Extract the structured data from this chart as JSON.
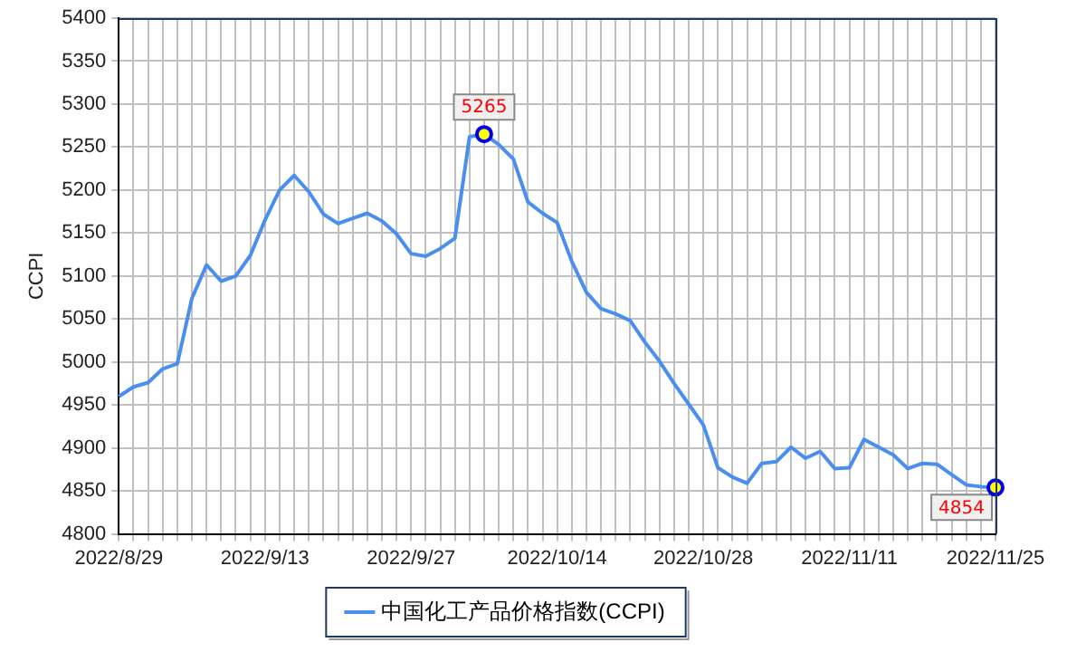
{
  "chart_data": {
    "type": "line",
    "ylabel": "CCPI",
    "categories": [
      "2022/8/29",
      null,
      null,
      null,
      null,
      null,
      null,
      null,
      null,
      null,
      "2022/9/13",
      null,
      null,
      null,
      null,
      null,
      null,
      null,
      null,
      null,
      "2022/9/27",
      null,
      null,
      null,
      null,
      null,
      null,
      null,
      null,
      null,
      "2022/10/14",
      null,
      null,
      null,
      null,
      null,
      null,
      null,
      null,
      null,
      "2022/10/28",
      null,
      null,
      null,
      null,
      null,
      null,
      null,
      null,
      null,
      "2022/11/11",
      null,
      null,
      null,
      null,
      null,
      null,
      null,
      null,
      null,
      "2022/11/25"
    ],
    "series": [
      {
        "name": "中国化工产品价格指数(CCPI)",
        "color": "#4a8ff0",
        "values": [
          4960,
          4971,
          4976,
          4992,
          4998,
          5074,
          5113,
          5094,
          5100,
          5124,
          5165,
          5200,
          5217,
          5198,
          5172,
          5161,
          5167,
          5173,
          5164,
          5149,
          5126,
          5123,
          5132,
          5144,
          5262,
          5265,
          5253,
          5236,
          5186,
          5173,
          5162,
          5117,
          5081,
          5062,
          5056,
          5048,
          5023,
          5001,
          4975,
          4951,
          4927,
          4877,
          4866,
          4859,
          4882,
          4884,
          4901,
          4888,
          4896,
          4876,
          4877,
          4910,
          4901,
          4892,
          4876,
          4882,
          4881,
          4869,
          4857,
          4855,
          4854
        ]
      }
    ],
    "ylim": [
      4800,
      5400
    ],
    "yticks": [
      4800,
      4850,
      4900,
      4950,
      5000,
      5050,
      5100,
      5150,
      5200,
      5250,
      5300,
      5350,
      5400
    ],
    "grid": true,
    "legend": "bottom",
    "marker": "none",
    "line_style": "solid",
    "annotations": [
      {
        "text": "5265",
        "y": 5265
      },
      {
        "text": "4854",
        "y": 4854
      }
    ]
  }
}
